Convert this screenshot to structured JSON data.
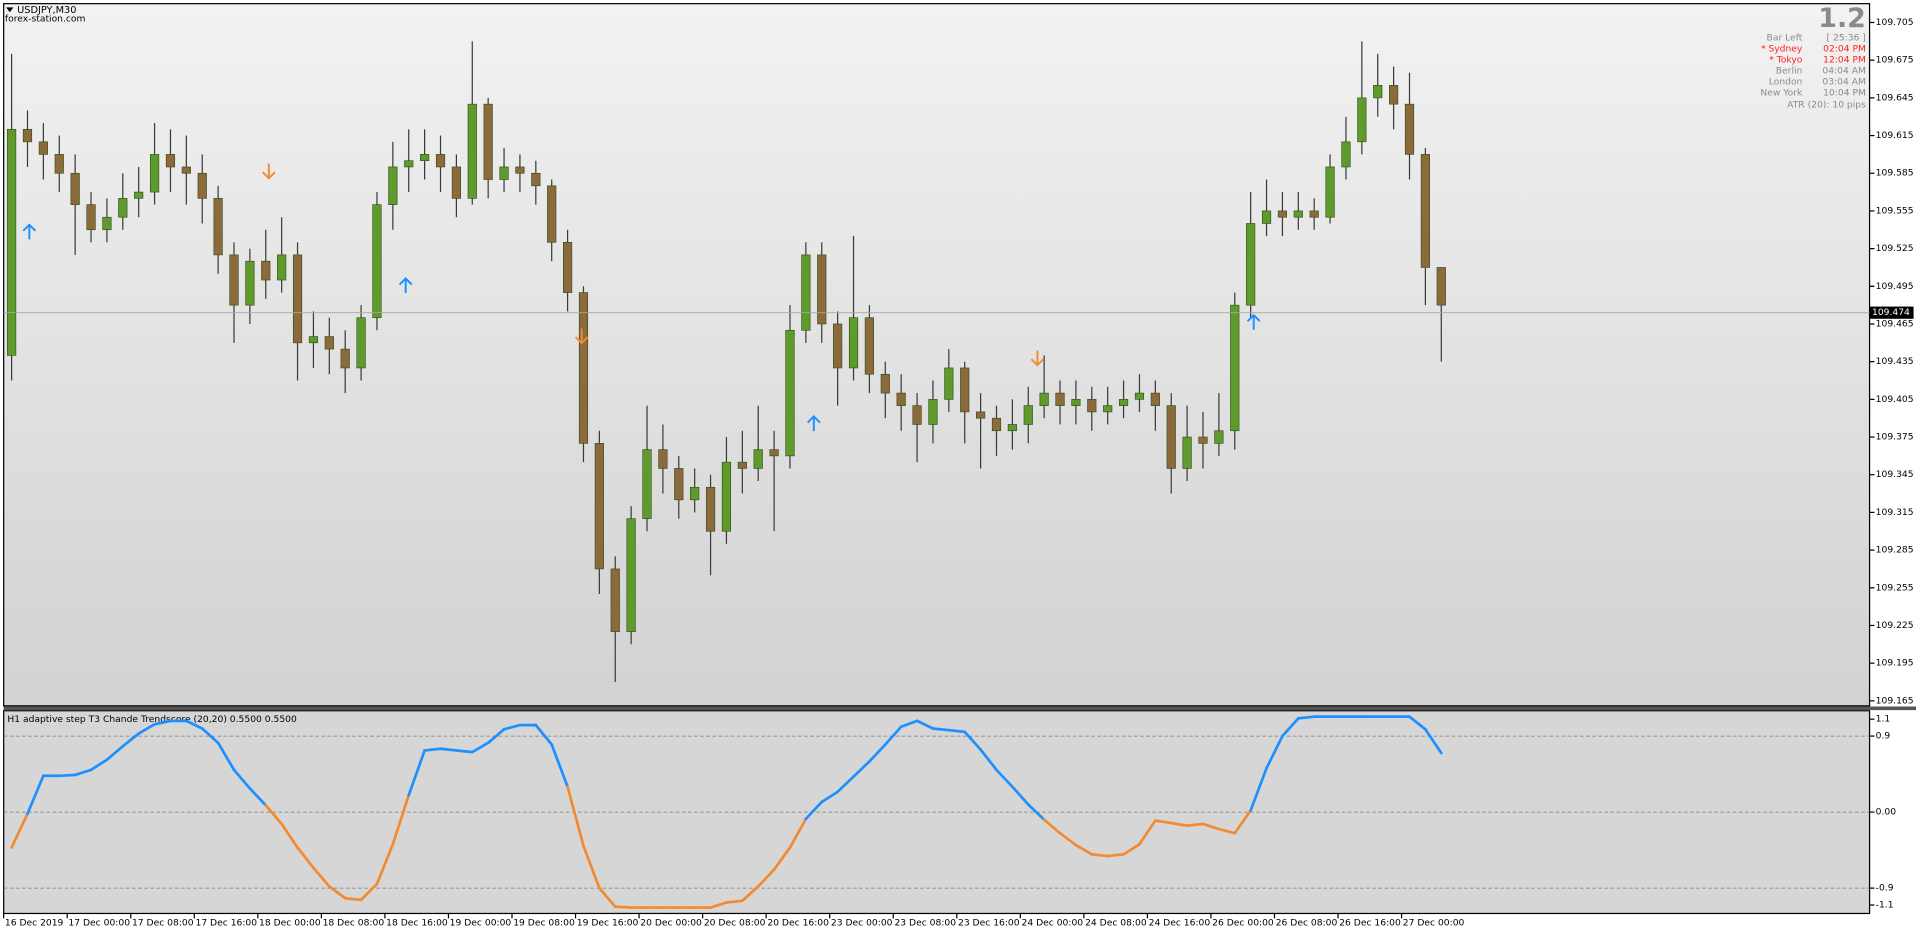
{
  "chart_data": [
    {
      "type": "candlestick",
      "title": "USDJPY,M30",
      "subtitle": "forex-station.com",
      "bull_color": "#5f9a2c",
      "bear_color": "#8c6a3c",
      "wick_color": "#3a3a3a",
      "ylim": [
        109.161,
        109.72
      ],
      "yticks": [
        109.705,
        109.675,
        109.645,
        109.615,
        109.585,
        109.555,
        109.525,
        109.495,
        109.465,
        109.435,
        109.405,
        109.375,
        109.345,
        109.315,
        109.285,
        109.255,
        109.225,
        109.195,
        109.165
      ],
      "last_price": 109.474,
      "xtick_labels": [
        "16 Dec 2019",
        "17 Dec 00:00",
        "17 Dec 08:00",
        "17 Dec 16:00",
        "18 Dec 00:00",
        "18 Dec 08:00",
        "18 Dec 16:00",
        "19 Dec 00:00",
        "19 Dec 08:00",
        "19 Dec 16:00",
        "20 Dec 00:00",
        "20 Dec 08:00",
        "20 Dec 16:00",
        "23 Dec 00:00",
        "23 Dec 08:00",
        "23 Dec 16:00",
        "24 Dec 00:00",
        "24 Dec 08:00",
        "24 Dec 16:00",
        "26 Dec 00:00",
        "26 Dec 08:00",
        "26 Dec 16:00",
        "27 Dec 00:00"
      ],
      "open": [
        109.44,
        109.62,
        109.61,
        109.6,
        109.585,
        109.56,
        109.54,
        109.55,
        109.565,
        109.57,
        109.6,
        109.59,
        109.585,
        109.565,
        109.52,
        109.48,
        109.515,
        109.5,
        109.52,
        109.45,
        109.455,
        109.445,
        109.43,
        109.47,
        109.56,
        109.59,
        109.595,
        109.6,
        109.59,
        109.565,
        109.64,
        109.58,
        109.59,
        109.585,
        109.575,
        109.53,
        109.49,
        109.37,
        109.27,
        109.22,
        109.31,
        109.365,
        109.35,
        109.325,
        109.335,
        109.3,
        109.355,
        109.35,
        109.365,
        109.36,
        109.46,
        109.52,
        109.465,
        109.43,
        109.47,
        109.425,
        109.41,
        109.4,
        109.385,
        109.405,
        109.43,
        109.395,
        109.39,
        109.38,
        109.385,
        109.4,
        109.41,
        109.4,
        109.405,
        109.395,
        109.4,
        109.405,
        109.41,
        109.4,
        109.35,
        109.375,
        109.37,
        109.38,
        109.48,
        109.545,
        109.555,
        109.55,
        109.555,
        109.55,
        109.59,
        109.61,
        109.645,
        109.655,
        109.64,
        109.6,
        109.51
      ],
      "high": [
        109.68,
        109.635,
        109.625,
        109.615,
        109.6,
        109.57,
        109.565,
        109.585,
        109.59,
        109.625,
        109.62,
        109.615,
        109.6,
        109.575,
        109.53,
        109.525,
        109.54,
        109.55,
        109.53,
        109.475,
        109.47,
        109.46,
        109.48,
        109.57,
        109.61,
        109.62,
        109.62,
        109.615,
        109.6,
        109.69,
        109.645,
        109.605,
        109.6,
        109.595,
        109.58,
        109.54,
        109.495,
        109.38,
        109.28,
        109.32,
        109.4,
        109.385,
        109.36,
        109.35,
        109.345,
        109.375,
        109.38,
        109.4,
        109.38,
        109.48,
        109.53,
        109.53,
        109.475,
        109.535,
        109.48,
        109.435,
        109.425,
        109.41,
        109.42,
        109.445,
        109.435,
        109.41,
        109.4,
        109.405,
        109.415,
        109.44,
        109.42,
        109.42,
        109.415,
        109.415,
        109.42,
        109.425,
        109.42,
        109.41,
        109.4,
        109.395,
        109.41,
        109.49,
        109.57,
        109.58,
        109.57,
        109.57,
        109.565,
        109.6,
        109.63,
        109.69,
        109.68,
        109.67,
        109.665,
        109.605,
        109.505
      ],
      "low": [
        109.42,
        109.59,
        109.58,
        109.57,
        109.52,
        109.53,
        109.53,
        109.54,
        109.55,
        109.56,
        109.57,
        109.56,
        109.545,
        109.505,
        109.45,
        109.465,
        109.485,
        109.49,
        109.42,
        109.43,
        109.425,
        109.41,
        109.42,
        109.46,
        109.54,
        109.57,
        109.58,
        109.57,
        109.55,
        109.56,
        109.565,
        109.57,
        109.57,
        109.56,
        109.515,
        109.475,
        109.355,
        109.25,
        109.18,
        109.21,
        109.3,
        109.33,
        109.31,
        109.315,
        109.265,
        109.29,
        109.33,
        109.34,
        109.3,
        109.35,
        109.45,
        109.45,
        109.4,
        109.42,
        109.41,
        109.39,
        109.38,
        109.355,
        109.37,
        109.395,
        109.37,
        109.35,
        109.36,
        109.365,
        109.37,
        109.39,
        109.385,
        109.385,
        109.38,
        109.385,
        109.39,
        109.395,
        109.38,
        109.33,
        109.34,
        109.35,
        109.36,
        109.365,
        109.47,
        109.535,
        109.535,
        109.54,
        109.54,
        109.545,
        109.58,
        109.6,
        109.63,
        109.62,
        109.58,
        109.48,
        109.435
      ],
      "close": [
        109.62,
        109.61,
        109.6,
        109.585,
        109.56,
        109.54,
        109.55,
        109.565,
        109.57,
        109.6,
        109.59,
        109.585,
        109.565,
        109.52,
        109.48,
        109.515,
        109.5,
        109.52,
        109.45,
        109.455,
        109.445,
        109.43,
        109.47,
        109.56,
        109.59,
        109.595,
        109.6,
        109.59,
        109.565,
        109.64,
        109.58,
        109.59,
        109.585,
        109.575,
        109.53,
        109.49,
        109.37,
        109.27,
        109.22,
        109.31,
        109.365,
        109.35,
        109.325,
        109.335,
        109.3,
        109.355,
        109.35,
        109.365,
        109.36,
        109.46,
        109.52,
        109.465,
        109.43,
        109.47,
        109.425,
        109.41,
        109.4,
        109.385,
        109.405,
        109.43,
        109.395,
        109.39,
        109.38,
        109.385,
        109.4,
        109.41,
        109.4,
        109.405,
        109.395,
        109.4,
        109.405,
        109.41,
        109.4,
        109.35,
        109.375,
        109.37,
        109.38,
        109.48,
        109.545,
        109.555,
        109.55,
        109.555,
        109.55,
        109.59,
        109.61,
        109.645,
        109.655,
        109.64,
        109.6,
        109.51,
        109.48
      ]
    },
    {
      "type": "line",
      "title": "H1  adaptive step T3 Chande Trendscore (20,20) 0.5500 0.5500",
      "up_color": "#1e8fff",
      "down_color": "#f28a32",
      "ylim": [
        -1.2,
        1.2
      ],
      "yticks": [
        1.1,
        0.9,
        {
          "value": 0,
          "label": "0.00"
        },
        -0.9,
        -1.1
      ],
      "levels": [
        0.9,
        0,
        -0.9
      ],
      "values": [
        -0.42,
        -0.02,
        0.43,
        0.43,
        0.44,
        0.5,
        0.62,
        0.78,
        0.93,
        1.04,
        1.08,
        1.08,
        0.99,
        0.82,
        0.5,
        0.28,
        0.08,
        -0.14,
        -0.42,
        -0.66,
        -0.88,
        -1.02,
        -1.04,
        -0.85,
        -0.38,
        0.2,
        0.73,
        0.75,
        0.73,
        0.71,
        0.82,
        0.98,
        1.03,
        1.03,
        0.8,
        0.3,
        -0.4,
        -0.9,
        -1.12,
        -1.13,
        -1.13,
        -1.13,
        -1.13,
        -1.13,
        -1.13,
        -1.07,
        -1.05,
        -0.88,
        -0.68,
        -0.42,
        -0.08,
        0.12,
        0.24,
        0.42,
        0.6,
        0.8,
        1.01,
        1.08,
        0.99,
        0.97,
        0.95,
        0.74,
        0.5,
        0.3,
        0.09,
        -0.09,
        -0.25,
        -0.39,
        -0.5,
        -0.52,
        -0.5,
        -0.38,
        -0.1,
        -0.13,
        -0.16,
        -0.14,
        -0.2,
        -0.25,
        0.02,
        0.52,
        0.9,
        1.11,
        1.13,
        1.13,
        1.13,
        1.13,
        1.13,
        1.13,
        1.13,
        0.98,
        0.7
      ]
    }
  ],
  "info": {
    "version": "1.2",
    "rows": [
      {
        "label": "Bar Left",
        "value": "[ 25:36 ]",
        "color": "#8a8a8a"
      },
      {
        "label": "* Sydney",
        "value": "02:04 PM",
        "color": "#ff2020"
      },
      {
        "label": "* Tokyo",
        "value": "12:04 PM",
        "color": "#ff2020"
      },
      {
        "label": "Berlin",
        "value": "04:04 AM",
        "color": "#8a8a8a"
      },
      {
        "label": "London",
        "value": "03:04 AM",
        "color": "#8a8a8a"
      },
      {
        "label": "New York",
        "value": "10:04 PM",
        "color": "#8a8a8a"
      }
    ],
    "atr": "ATR (20): 10 pips"
  }
}
